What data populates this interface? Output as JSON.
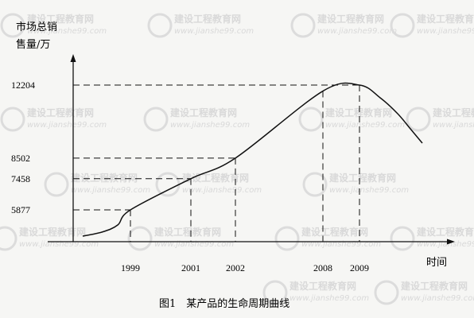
{
  "chart_data": {
    "type": "line",
    "ylabel_line1": "市场总销",
    "ylabel_line2": "售量/万",
    "xlabel": "时间",
    "caption": "图1　某产品的生命周期曲线",
    "x_ticks": [
      "1999",
      "2001",
      "2002",
      "2008",
      "2009"
    ],
    "y_ticks": [
      "5877",
      "7458",
      "8502",
      "12204"
    ],
    "points": [
      {
        "year": "1999",
        "value": 5877
      },
      {
        "year": "2001",
        "value": 7458
      },
      {
        "year": "2002",
        "value": 8502
      },
      {
        "year": "2008",
        "value": 11900
      },
      {
        "year": "2009",
        "value": 12204
      }
    ],
    "guide_lines": "dashed",
    "grid": false
  },
  "watermark": {
    "text_cn": "建设工程教育网",
    "text_en": "www.jianshe99.com"
  }
}
